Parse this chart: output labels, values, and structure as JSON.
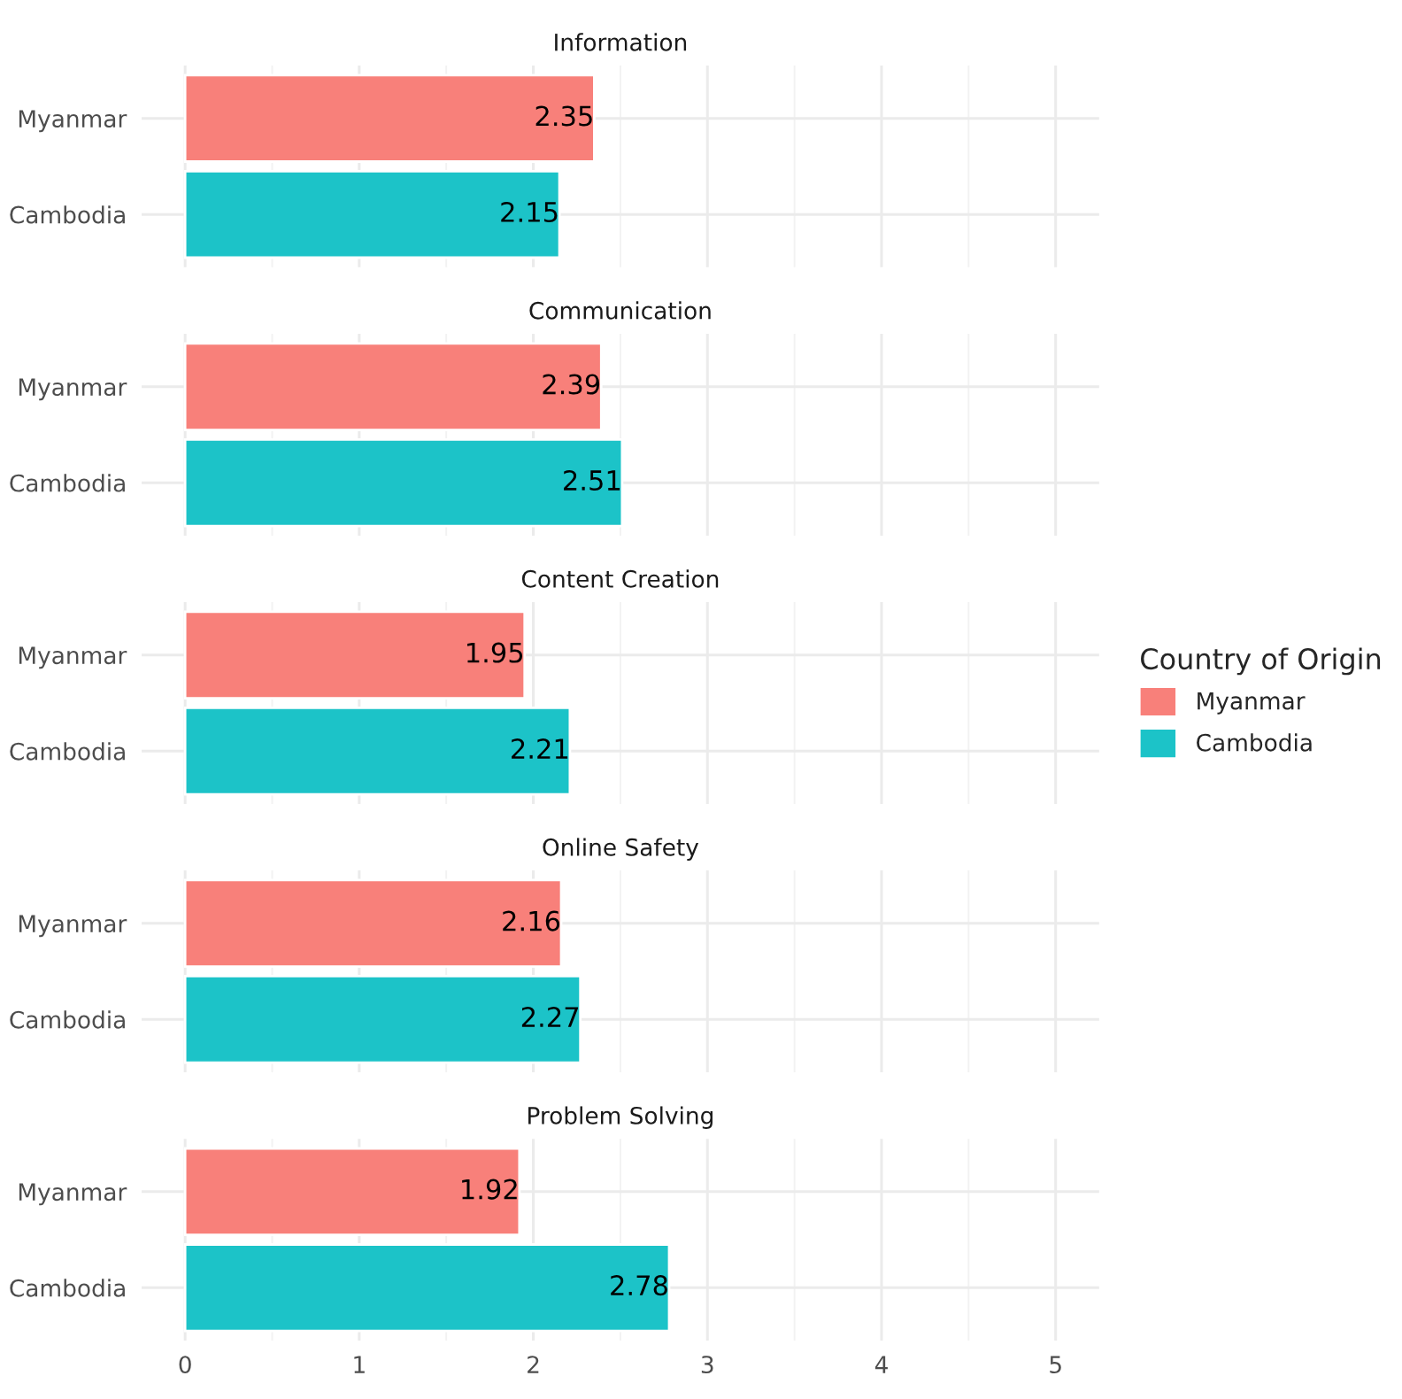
{
  "chart_data": [
    {
      "type": "bar",
      "orientation": "horizontal",
      "title": "Information",
      "categories": [
        "Myanmar",
        "Cambodia"
      ],
      "series": [
        {
          "color": "#f8807a",
          "values": [
            2.35,
            null
          ]
        },
        {
          "color": "#1cc3c8",
          "values": [
            null,
            2.15
          ]
        }
      ],
      "data_labels": true,
      "xlim": [
        -0.25,
        5.25
      ],
      "xticks": [
        0,
        1,
        2,
        3,
        4,
        5
      ],
      "grid": true,
      "tick_labels": "y"
    },
    {
      "type": "bar",
      "orientation": "horizontal",
      "title": "Communication",
      "categories": [
        "Myanmar",
        "Cambodia"
      ],
      "series": [
        {
          "color": "#f8807a",
          "values": [
            2.39,
            null
          ]
        },
        {
          "color": "#1cc3c8",
          "values": [
            null,
            2.51
          ]
        }
      ],
      "data_labels": true,
      "xlim": [
        -0.25,
        5.25
      ],
      "xticks": [
        0,
        1,
        2,
        3,
        4,
        5
      ],
      "grid": true,
      "tick_labels": "y"
    },
    {
      "type": "bar",
      "orientation": "horizontal",
      "title": "Content Creation",
      "categories": [
        "Myanmar",
        "Cambodia"
      ],
      "series": [
        {
          "name": "Myanmar",
          "color": "#f8807a",
          "values": [
            1.95,
            null
          ]
        },
        {
          "name": "Cambodia",
          "color": "#1cc3c8",
          "values": [
            null,
            2.21
          ]
        }
      ],
      "data_labels": true,
      "xlim": [
        -0.25,
        5.25
      ],
      "xticks": [
        0,
        1,
        2,
        3,
        4,
        5
      ],
      "grid": true,
      "tick_labels": "y",
      "legend": "right",
      "legend_title": "Country of Origin"
    },
    {
      "type": "bar",
      "orientation": "horizontal",
      "title": "Online Safety",
      "categories": [
        "Myanmar",
        "Cambodia"
      ],
      "series": [
        {
          "color": "#f8807a",
          "values": [
            2.16,
            null
          ]
        },
        {
          "color": "#1cc3c8",
          "values": [
            null,
            2.27
          ]
        }
      ],
      "data_labels": true,
      "xlim": [
        -0.25,
        5.25
      ],
      "xticks": [
        0,
        1,
        2,
        3,
        4,
        5
      ],
      "grid": true,
      "tick_labels": "y"
    },
    {
      "type": "bar",
      "orientation": "horizontal",
      "title": "Problem Solving",
      "categories": [
        "Myanmar",
        "Cambodia"
      ],
      "series": [
        {
          "color": "#f8807a",
          "values": [
            1.92,
            null
          ]
        },
        {
          "color": "#1cc3c8",
          "values": [
            null,
            2.78
          ]
        }
      ],
      "data_labels": true,
      "xlim": [
        -0.25,
        5.25
      ],
      "xticks": [
        0,
        1,
        2,
        3,
        4,
        5
      ],
      "grid": true
    }
  ]
}
